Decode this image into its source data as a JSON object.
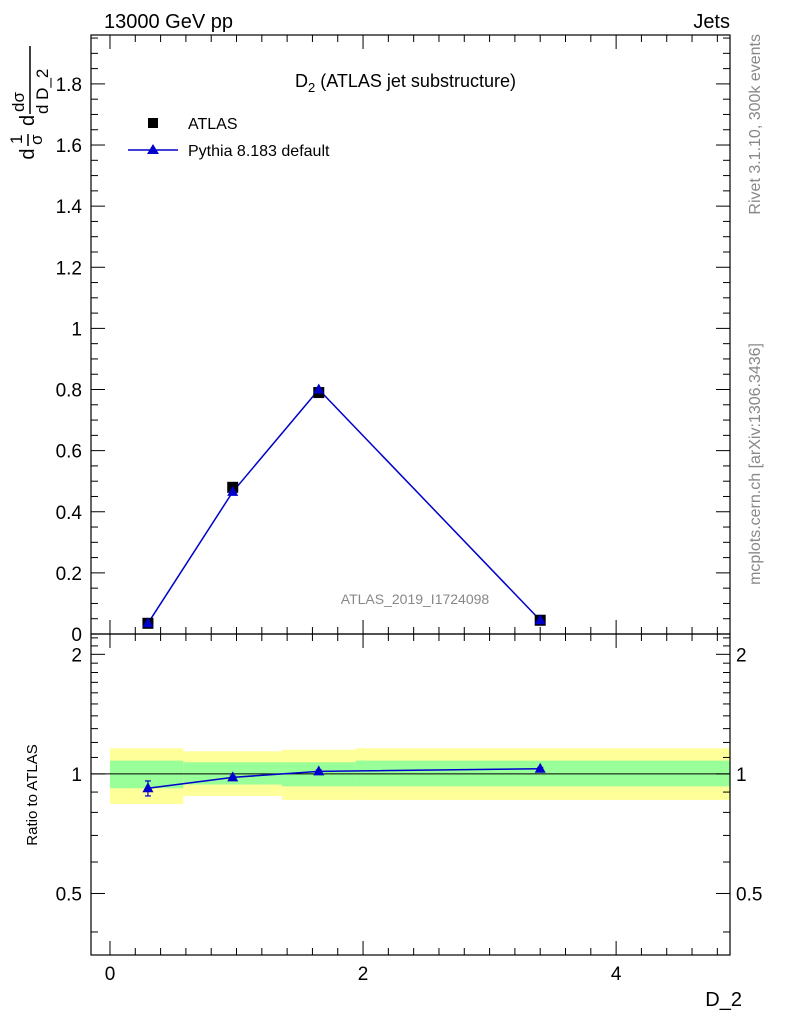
{
  "header": {
    "left_label": "13000 GeV pp",
    "right_label": "Jets",
    "side_label_top": "Rivet 3.1.10,  300k events",
    "side_label_bottom": "mcplots.cern.ch [arXiv:1306.3436]",
    "watermark": "ATLAS_2019_I1724098"
  },
  "chart_data": [
    {
      "type": "scatter",
      "title_main": "D",
      "title_sub": "2",
      "title_rest": " (ATLAS jet substructure)",
      "ylabel_parts": [
        "1",
        "σ",
        "dσ",
        "d D_2",
        "d",
        "d"
      ],
      "xlim": [
        -0.15,
        4.9
      ],
      "ylim": [
        0,
        1.96
      ],
      "yticks": [
        0,
        0.2,
        0.4,
        0.6,
        0.8,
        1,
        1.2,
        1.4,
        1.6,
        1.8
      ],
      "ytick_labels": [
        "0",
        "0.2",
        "0.4",
        "0.6",
        "0.8",
        "1",
        "1.2",
        "1.4",
        "1.6",
        "1.8"
      ],
      "legend": [
        {
          "name": "ATLAS",
          "marker": "square",
          "color": "#000000"
        },
        {
          "name": "Pythia 8.183 default",
          "marker": "triangle",
          "color": "#0000cc"
        }
      ],
      "series": [
        {
          "name": "ATLAS",
          "x": [
            0.3,
            0.97,
            1.65,
            3.4
          ],
          "y": [
            0.035,
            0.48,
            0.79,
            0.045
          ]
        },
        {
          "name": "Pythia 8.183 default",
          "x": [
            0.3,
            0.97,
            1.65,
            3.4
          ],
          "y": [
            0.035,
            0.465,
            0.8,
            0.045
          ]
        }
      ]
    },
    {
      "type": "line",
      "ylabel": "Ratio to ATLAS",
      "xlabel": "D_2",
      "xlim": [
        -0.15,
        4.9
      ],
      "ylim": [
        0.35,
        2.25
      ],
      "yticks": [
        0.5,
        1,
        2
      ],
      "ytick_labels": [
        "0.5",
        "1",
        "2"
      ],
      "xticks": [
        0,
        2,
        4
      ],
      "xtick_labels": [
        "0",
        "2",
        "4"
      ],
      "bands": [
        {
          "x0": 0.0,
          "x1": 0.58,
          "yellow": [
            0.84,
            1.16
          ],
          "green": [
            0.92,
            1.08
          ]
        },
        {
          "x0": 0.58,
          "x1": 1.36,
          "yellow": [
            0.88,
            1.14
          ],
          "green": [
            0.94,
            1.07
          ]
        },
        {
          "x0": 1.36,
          "x1": 1.94,
          "yellow": [
            0.86,
            1.15
          ],
          "green": [
            0.93,
            1.07
          ]
        },
        {
          "x0": 1.94,
          "x1": 4.9,
          "yellow": [
            0.86,
            1.16
          ],
          "green": [
            0.93,
            1.08
          ]
        }
      ],
      "series": [
        {
          "name": "Pythia 8.183 default",
          "x": [
            0.3,
            0.97,
            1.65,
            3.4
          ],
          "y": [
            0.92,
            0.98,
            1.015,
            1.03
          ],
          "err": [
            0.04,
            0.008,
            0.008,
            0.008
          ]
        }
      ]
    }
  ]
}
